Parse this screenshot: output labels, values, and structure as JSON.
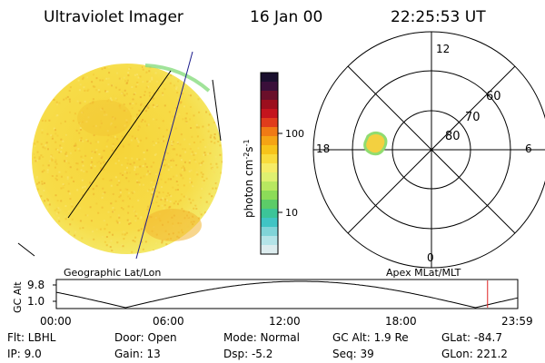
{
  "header": {
    "instrument": "Ultraviolet Imager",
    "date": "16 Jan 00",
    "time": "22:25:53 UT"
  },
  "colorbar": {
    "unit": "photon cm",
    "unit_exp1": "-2",
    "unit_mid": "s",
    "unit_exp2": "-1",
    "tick_high": "100",
    "tick_low": "10",
    "colors": [
      "#1a0f2e",
      "#3a0f3a",
      "#6a0f2a",
      "#9c0f1e",
      "#c4141e",
      "#e03c1c",
      "#f07a14",
      "#f5a414",
      "#f7c41a",
      "#f9dc3c",
      "#f6ec66",
      "#dff070",
      "#b8e860",
      "#8cdc58",
      "#5ccc68",
      "#3cc498",
      "#40c4c4",
      "#80d4d8",
      "#b4e4e8",
      "#dcecee"
    ]
  },
  "panels": {
    "left_label": "Geographic Lat/Lon",
    "right_label": "Apex MLat/MLT"
  },
  "polar": {
    "mlt_labels": [
      "12",
      "18",
      "6",
      "0"
    ],
    "lat_labels": [
      "60",
      "70",
      "80"
    ]
  },
  "timeline": {
    "ylabel": "GC Alt",
    "yticks": [
      "9.8",
      "1.0"
    ],
    "xticks": [
      "00:00",
      "06:00",
      "12:00",
      "18:00",
      "23:59"
    ],
    "marker_hour": 22.43
  },
  "status": [
    [
      "Flt: LBHL",
      "Door: Open",
      "Mode: Normal",
      "GC Alt: 1.9 Re",
      "GLat: -84.7"
    ],
    [
      "IP: 9.0",
      "Gain: 13",
      "Dsp:  -5.2",
      "Seq: 39",
      "GLon: 221.2"
    ]
  ]
}
